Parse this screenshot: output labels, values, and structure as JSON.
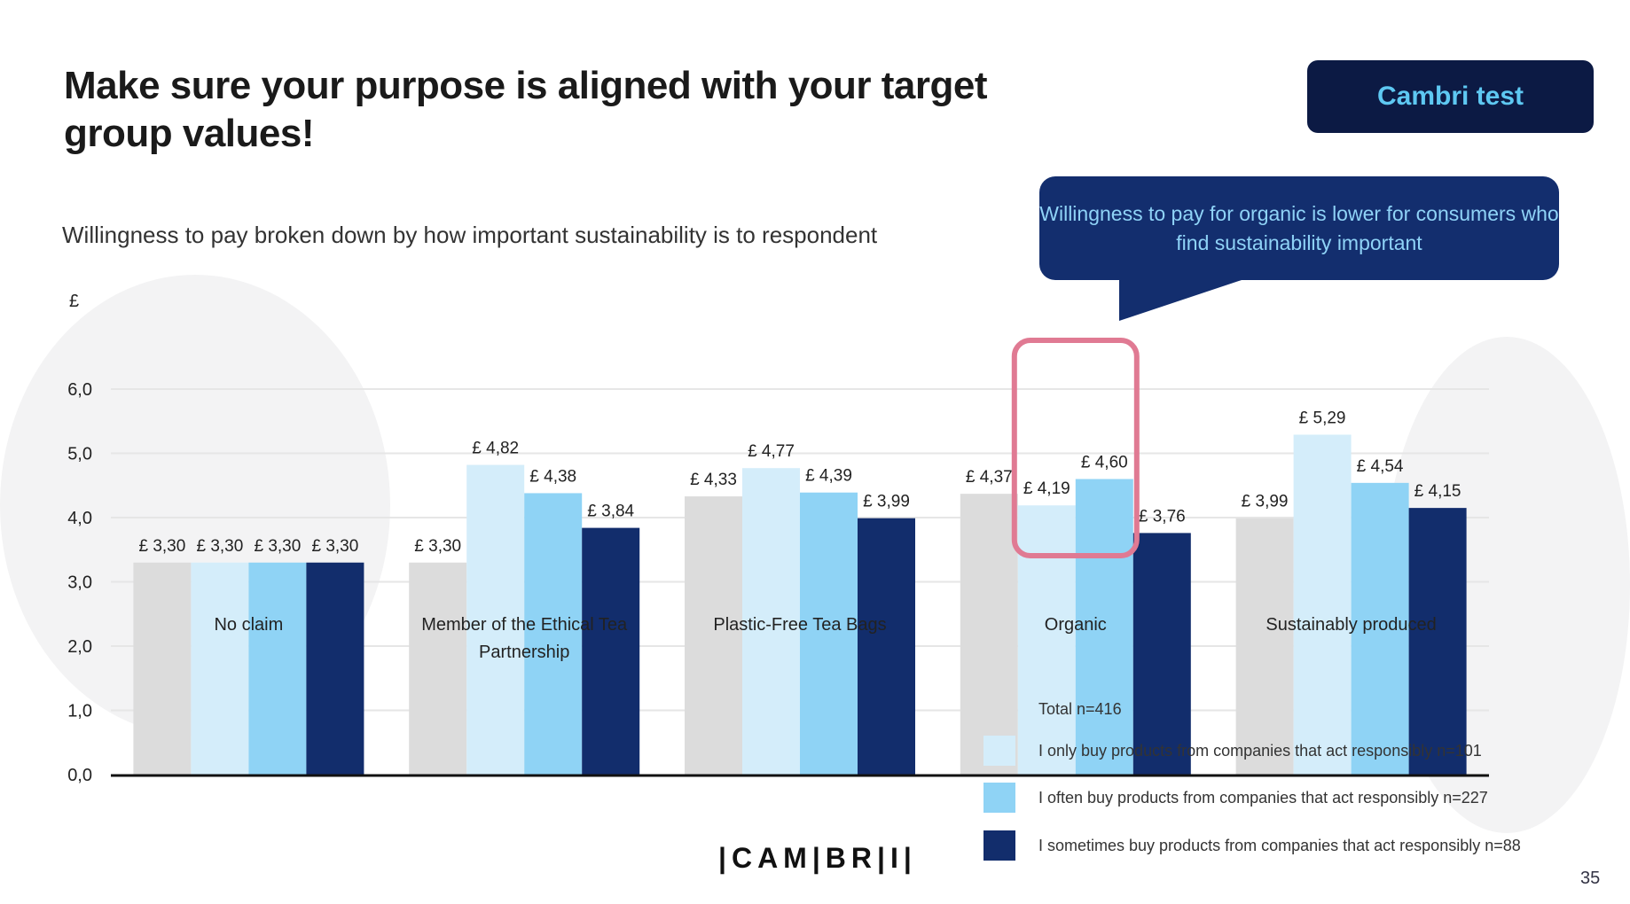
{
  "header": {
    "title": "Make sure your purpose is aligned with your target group values!",
    "badge": "Cambri test",
    "subtitle": "Willingness to pay broken down by how important sustainability is to respondent",
    "callout": "Willingness to pay for organic is lower for consumers who find sustainability important"
  },
  "chart_data": {
    "type": "bar",
    "title": "",
    "ylabel": "£",
    "xlabel": "",
    "ylim": [
      0,
      6
    ],
    "yticks": [
      "0,0",
      "1,0",
      "2,0",
      "3,0",
      "4,0",
      "5,0",
      "6,0"
    ],
    "grid": true,
    "categories": [
      "No claim",
      "Member of the Ethical Tea Partnership",
      "Plastic-Free Tea Bags",
      "Organic",
      "Sustainably produced"
    ],
    "series": [
      {
        "name": "Total n=416",
        "color": "#dcdcdc",
        "values": [
          3.3,
          3.3,
          4.33,
          4.37,
          3.99
        ],
        "labels": [
          "£ 3,30",
          "£ 3,30",
          "£ 4,33",
          "£ 4,37",
          "£ 3,99"
        ]
      },
      {
        "name": "I only buy products from companies that act responsibly n=101",
        "color": "#d4edfa",
        "values": [
          3.3,
          4.82,
          4.77,
          4.19,
          5.29
        ],
        "labels": [
          "£ 3,30",
          "£ 4,82",
          "£ 4,77",
          "£ 4,19",
          "£ 5,29"
        ]
      },
      {
        "name": "I often buy products from companies that act responsibly n=227",
        "color": "#8fd3f5",
        "values": [
          3.3,
          4.38,
          4.39,
          4.6,
          4.54
        ],
        "labels": [
          "£ 3,30",
          "£ 4,38",
          "£ 4,39",
          "£ 4,60",
          "£ 4,54"
        ]
      },
      {
        "name": "I sometimes buy products from companies that act responsibly n=88",
        "color": "#122d6c",
        "values": [
          3.3,
          3.84,
          3.99,
          3.76,
          4.15
        ],
        "labels": [
          "£ 3,30",
          "£ 3,84",
          "£ 3,99",
          "£ 3,76",
          "£ 4,15"
        ]
      }
    ],
    "highlight": {
      "category": "Organic",
      "series": [
        1,
        2
      ],
      "color": "#e07a93"
    },
    "legend_position": "bottom-right"
  },
  "footer": {
    "logo": "|CAM|BR|I|",
    "page_number": "35"
  }
}
